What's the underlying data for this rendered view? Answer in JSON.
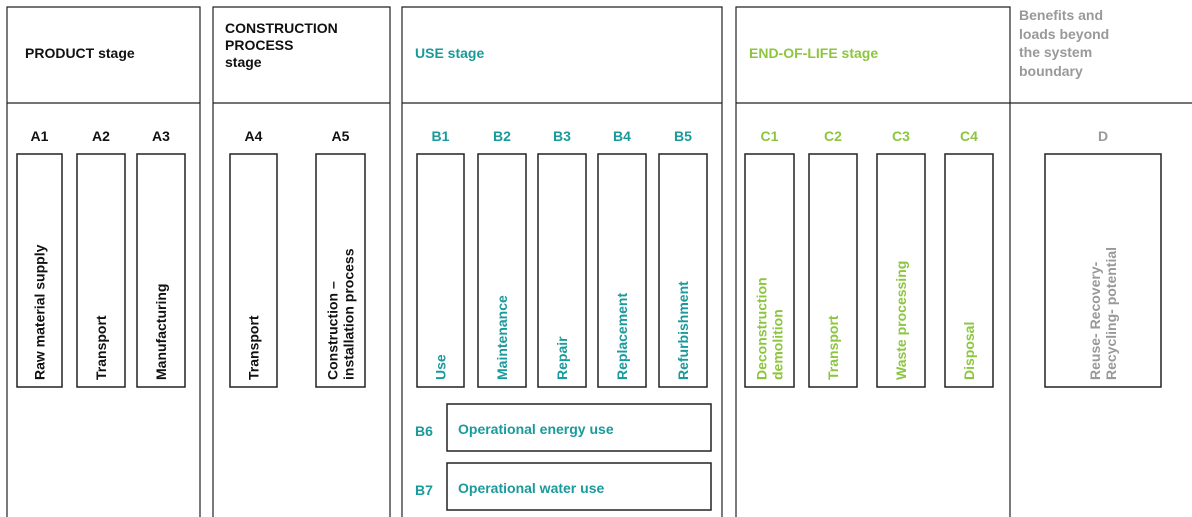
{
  "stages": [
    {
      "title": [
        "PRODUCT stage"
      ],
      "modules": [
        {
          "code": "A1",
          "label": [
            "Raw material supply"
          ]
        },
        {
          "code": "A2",
          "label": [
            "Transport"
          ]
        },
        {
          "code": "A3",
          "label": [
            "Manufacturing"
          ]
        }
      ]
    },
    {
      "title": [
        "CONSTRUCTION",
        "PROCESS",
        "stage"
      ],
      "modules": [
        {
          "code": "A4",
          "label": [
            "Transport"
          ]
        },
        {
          "code": "A5",
          "label": [
            "Construction –",
            "installation process"
          ]
        }
      ]
    },
    {
      "title": [
        "USE stage"
      ],
      "modules": [
        {
          "code": "B1",
          "label": [
            "Use"
          ]
        },
        {
          "code": "B2",
          "label": [
            "Maintenance"
          ]
        },
        {
          "code": "B3",
          "label": [
            "Repair"
          ]
        },
        {
          "code": "B4",
          "label": [
            "Replacement"
          ]
        },
        {
          "code": "B5",
          "label": [
            "Refurbishment"
          ]
        }
      ],
      "extra": [
        {
          "code": "B6",
          "label": "Operational energy use"
        },
        {
          "code": "B7",
          "label": "Operational water use"
        }
      ]
    },
    {
      "title": [
        "END-OF-LIFE stage"
      ],
      "modules": [
        {
          "code": "C1",
          "label": [
            "Deconstruction",
            "demolition"
          ]
        },
        {
          "code": "C2",
          "label": [
            "Transport"
          ]
        },
        {
          "code": "C3",
          "label": [
            "Waste processing"
          ]
        },
        {
          "code": "C4",
          "label": [
            "Disposal"
          ]
        }
      ]
    },
    {
      "title": [
        "Benefits and",
        "loads beyond",
        "the system",
        "boundary"
      ],
      "modules": [
        {
          "code": "D",
          "label": [
            "Reuse- Recovery-",
            "Recycling- potential"
          ]
        }
      ]
    }
  ]
}
